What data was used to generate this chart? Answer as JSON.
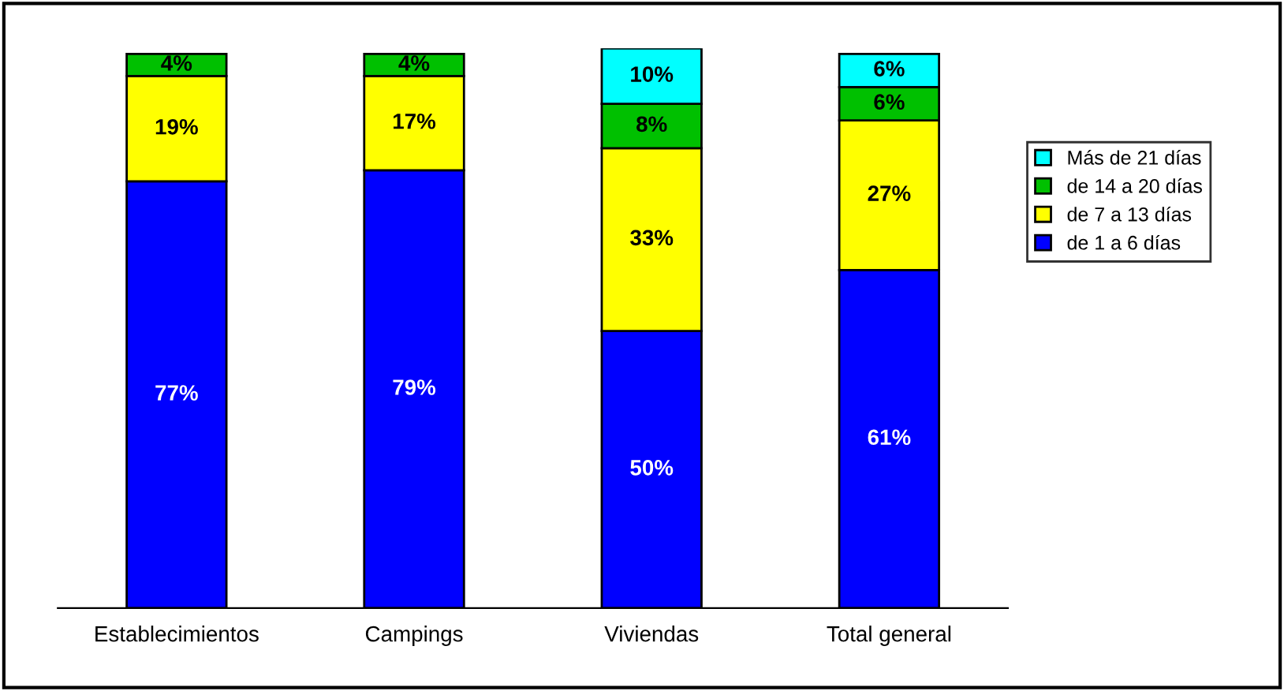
{
  "chart_data": {
    "type": "bar",
    "stacked": true,
    "legend": "right",
    "categories": [
      "Establecimientos",
      "Campings",
      "Viviendas",
      "Total general"
    ],
    "series": [
      {
        "name": "de 1 a 6 días",
        "color": "#0000ff",
        "values": [
          77,
          79,
          50,
          61
        ],
        "value_labels": [
          "77%",
          "79%",
          "50%",
          "61%"
        ]
      },
      {
        "name": "de 7 a 13 días",
        "color": "#ffff00",
        "values": [
          19,
          17,
          33,
          27
        ],
        "value_labels": [
          "19%",
          "17%",
          "33%",
          "27%"
        ]
      },
      {
        "name": "de 14 a 20 días",
        "color": "#00c000",
        "values": [
          4,
          4,
          8,
          6
        ],
        "value_labels": [
          "4%",
          "4%",
          "8%",
          "6%"
        ]
      },
      {
        "name": "Más de 21 días",
        "color": "#00ffff",
        "values": [
          null,
          null,
          10,
          6
        ],
        "value_labels": [
          null,
          null,
          "10%",
          "6%"
        ]
      }
    ]
  }
}
